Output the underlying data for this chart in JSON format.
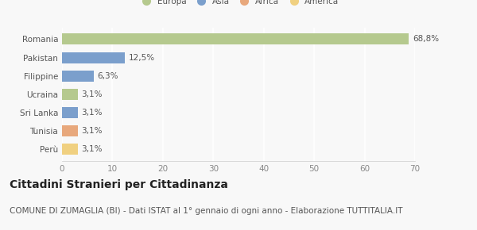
{
  "categories": [
    "Romania",
    "Pakistan",
    "Filippine",
    "Ucraina",
    "Sri Lanka",
    "Tunisia",
    "Perù"
  ],
  "values": [
    68.8,
    12.5,
    6.3,
    3.1,
    3.1,
    3.1,
    3.1
  ],
  "labels": [
    "68,8%",
    "12,5%",
    "6,3%",
    "3,1%",
    "3,1%",
    "3,1%",
    "3,1%"
  ],
  "colors": [
    "#b5c98e",
    "#7b9fcc",
    "#7b9fcc",
    "#b5c98e",
    "#7b9fcc",
    "#e8a87c",
    "#f0d080"
  ],
  "legend_labels": [
    "Europa",
    "Asia",
    "Africa",
    "America"
  ],
  "legend_colors": [
    "#b5c98e",
    "#7b9fcc",
    "#e8a87c",
    "#f0d080"
  ],
  "xlim": [
    0,
    70
  ],
  "xticks": [
    0,
    10,
    20,
    30,
    40,
    50,
    60,
    70
  ],
  "title": "Cittadini Stranieri per Cittadinanza",
  "subtitle": "COMUNE DI ZUMAGLIA (BI) - Dati ISTAT al 1° gennaio di ogni anno - Elaborazione TUTTITALIA.IT",
  "bg_color": "#f8f8f8",
  "plot_bg_color": "#f8f8f8",
  "grid_color": "#ffffff",
  "title_fontsize": 10,
  "subtitle_fontsize": 7.5,
  "label_fontsize": 7.5,
  "tick_fontsize": 7.5,
  "bar_height": 0.6
}
